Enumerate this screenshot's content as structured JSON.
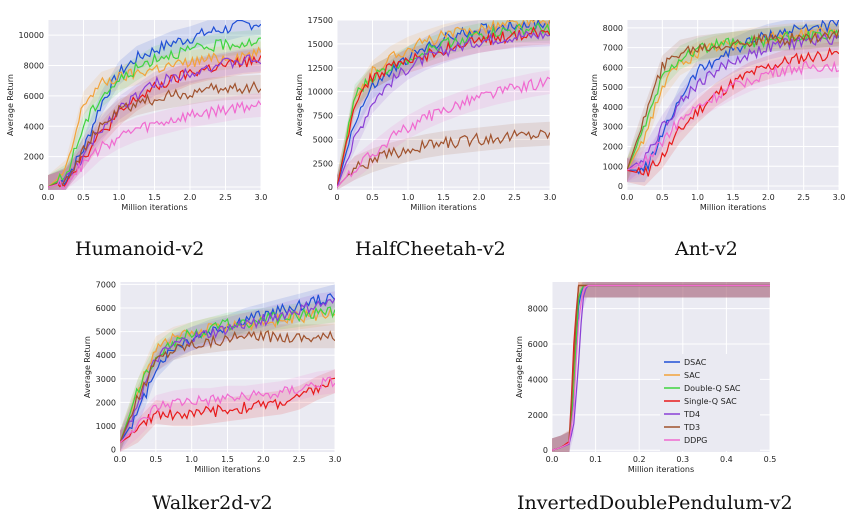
{
  "figure": {
    "legend": [
      "DSAC",
      "SAC",
      "Double-Q SAC",
      "Single-Q SAC",
      "TD4",
      "TD3",
      "DDPG"
    ],
    "colors": [
      "#1f4fd6",
      "#f2a33a",
      "#3fd43f",
      "#e81a1a",
      "#8a3fd6",
      "#a0522d",
      "#f06ad0"
    ]
  },
  "chart_data": [
    {
      "type": "line",
      "title": "Humanoid-v2",
      "xlabel": "Million iterations",
      "ylabel": "Average Return",
      "xlim": [
        0,
        3.0
      ],
      "ylim": [
        -200,
        11000
      ],
      "xticks": [
        "0.0",
        "0.5",
        "1.0",
        "1.5",
        "2.0",
        "2.5",
        "3.0"
      ],
      "yticks": [
        "0",
        "2000",
        "4000",
        "6000",
        "8000",
        "10000"
      ],
      "grid": true,
      "x": [
        0,
        0.25,
        0.5,
        0.75,
        1.0,
        1.25,
        1.5,
        1.75,
        2.0,
        2.25,
        2.5,
        2.75,
        3.0
      ],
      "series": [
        {
          "name": "DSAC",
          "values": [
            0,
            500,
            2500,
            5500,
            7500,
            8500,
            9000,
            9500,
            9800,
            10200,
            10400,
            10700,
            10800
          ]
        },
        {
          "name": "SAC",
          "values": [
            0,
            1000,
            5500,
            6800,
            7200,
            7500,
            7800,
            8000,
            8200,
            8400,
            8500,
            8700,
            8800
          ]
        },
        {
          "name": "Double-Q SAC",
          "values": [
            0,
            700,
            4000,
            6000,
            7000,
            7800,
            8500,
            8800,
            9000,
            9200,
            9400,
            9500,
            9600
          ]
        },
        {
          "name": "Single-Q SAC",
          "values": [
            0,
            400,
            2000,
            3500,
            4800,
            5800,
            6500,
            7000,
            7500,
            7800,
            8000,
            8200,
            8300
          ]
        },
        {
          "name": "TD4",
          "values": [
            0,
            400,
            2000,
            3800,
            5200,
            6000,
            6800,
            7200,
            7600,
            7900,
            8100,
            8300,
            8400
          ]
        },
        {
          "name": "TD3",
          "values": [
            0,
            500,
            2500,
            4000,
            5000,
            5500,
            5800,
            6000,
            6200,
            6400,
            6500,
            6550,
            6600
          ]
        },
        {
          "name": "DDPG",
          "values": [
            0,
            300,
            1500,
            2600,
            3300,
            3800,
            4100,
            4400,
            4700,
            4900,
            5100,
            5300,
            5400
          ]
        }
      ]
    },
    {
      "type": "line",
      "title": "HalfCheetah-v2",
      "xlabel": "Million iterations",
      "ylabel": "Average Return",
      "xlim": [
        0,
        3.0
      ],
      "ylim": [
        -300,
        17500
      ],
      "xticks": [
        "0",
        "0.5",
        "1.0",
        "1.5",
        "2.0",
        "2.5",
        "3.0"
      ],
      "yticks": [
        "0",
        "2500",
        "5000",
        "7500",
        "10000",
        "12500",
        "15000",
        "17500"
      ],
      "grid": true,
      "x": [
        0,
        0.25,
        0.5,
        0.75,
        1.0,
        1.25,
        1.5,
        1.75,
        2.0,
        2.25,
        2.5,
        2.75,
        3.0
      ],
      "series": [
        {
          "name": "DSAC",
          "values": [
            0,
            7000,
            10500,
            12000,
            13500,
            14500,
            15500,
            16000,
            16500,
            16800,
            17000,
            17100,
            17200
          ]
        },
        {
          "name": "SAC",
          "values": [
            0,
            9000,
            12000,
            13500,
            14500,
            15200,
            15800,
            16200,
            16600,
            16900,
            17100,
            17200,
            17300
          ]
        },
        {
          "name": "Double-Q SAC",
          "values": [
            0,
            9500,
            11500,
            12500,
            13500,
            14300,
            15000,
            15500,
            15900,
            16200,
            16400,
            16500,
            16600
          ]
        },
        {
          "name": "Single-Q SAC",
          "values": [
            0,
            9000,
            11500,
            12500,
            13200,
            13800,
            14400,
            14900,
            15300,
            15600,
            15900,
            16100,
            16200
          ]
        },
        {
          "name": "TD4",
          "values": [
            0,
            5000,
            9000,
            11000,
            12500,
            13500,
            14200,
            14800,
            15300,
            15600,
            15800,
            15900,
            16000
          ]
        },
        {
          "name": "TD3",
          "values": [
            0,
            2000,
            2800,
            3400,
            3900,
            4300,
            4600,
            4800,
            5000,
            5200,
            5400,
            5500,
            5600
          ]
        },
        {
          "name": "DDPG",
          "values": [
            0,
            2000,
            3500,
            5000,
            6300,
            7300,
            8100,
            8800,
            9400,
            9900,
            10300,
            10700,
            11000
          ]
        }
      ]
    },
    {
      "type": "line",
      "title": "Ant-v2",
      "xlabel": "Million iterations",
      "ylabel": "Average Return",
      "xlim": [
        0,
        3.0
      ],
      "ylim": [
        -200,
        8400
      ],
      "xticks": [
        "0.0",
        "0.5",
        "1.0",
        "1.5",
        "2.0",
        "2.5",
        "3.0"
      ],
      "yticks": [
        "0",
        "1000",
        "2000",
        "3000",
        "4000",
        "5000",
        "6000",
        "7000",
        "8000"
      ],
      "grid": true,
      "x": [
        0,
        0.25,
        0.5,
        0.75,
        1.0,
        1.25,
        1.5,
        1.75,
        2.0,
        2.25,
        2.5,
        2.75,
        3.0
      ],
      "series": [
        {
          "name": "DSAC",
          "values": [
            800,
            800,
            2500,
            4500,
            5800,
            6400,
            6900,
            7300,
            7600,
            7800,
            8000,
            8100,
            8200
          ]
        },
        {
          "name": "SAC",
          "values": [
            800,
            2500,
            5000,
            6200,
            6700,
            7000,
            7200,
            7400,
            7500,
            7600,
            7700,
            7800,
            7800
          ]
        },
        {
          "name": "Double-Q SAC",
          "values": [
            800,
            3000,
            5500,
            6500,
            6900,
            7100,
            7200,
            7300,
            7400,
            7500,
            7550,
            7600,
            7600
          ]
        },
        {
          "name": "Single-Q SAC",
          "values": [
            800,
            600,
            1500,
            2800,
            3800,
            4600,
            5200,
            5700,
            6000,
            6300,
            6500,
            6600,
            6700
          ]
        },
        {
          "name": "TD4",
          "values": [
            800,
            1500,
            3000,
            4200,
            5200,
            5800,
            6300,
            6700,
            7000,
            7200,
            7300,
            7400,
            7500
          ]
        },
        {
          "name": "TD3",
          "values": [
            800,
            3500,
            6000,
            6800,
            7000,
            7100,
            7200,
            7300,
            7400,
            7450,
            7500,
            7600,
            7700
          ]
        },
        {
          "name": "DDPG",
          "values": [
            800,
            1200,
            2300,
            3300,
            4000,
            4500,
            5000,
            5400,
            5700,
            5900,
            6000,
            6050,
            6100
          ]
        }
      ]
    },
    {
      "type": "line",
      "title": "Walker2d-v2",
      "xlabel": "Million iterations",
      "ylabel": "Average Return",
      "xlim": [
        0,
        3.0
      ],
      "ylim": [
        -100,
        7100
      ],
      "xticks": [
        "0.0",
        "0.5",
        "1.0",
        "1.5",
        "2.0",
        "2.5",
        "3.0"
      ],
      "yticks": [
        "0",
        "1000",
        "2000",
        "3000",
        "4000",
        "5000",
        "6000",
        "7000"
      ],
      "grid": true,
      "x": [
        0,
        0.25,
        0.5,
        0.75,
        1.0,
        1.25,
        1.5,
        1.75,
        2.0,
        2.25,
        2.5,
        2.75,
        3.0
      ],
      "series": [
        {
          "name": "DSAC",
          "values": [
            300,
            1500,
            3500,
            4300,
            4700,
            5000,
            5200,
            5500,
            5700,
            5900,
            6100,
            6300,
            6500
          ]
        },
        {
          "name": "SAC",
          "values": [
            300,
            2500,
            4300,
            4700,
            4900,
            5100,
            5200,
            5300,
            5400,
            5500,
            5600,
            5700,
            5800
          ]
        },
        {
          "name": "Double-Q SAC",
          "values": [
            300,
            2500,
            4000,
            4600,
            4900,
            5100,
            5300,
            5400,
            5500,
            5600,
            5700,
            5800,
            5900
          ]
        },
        {
          "name": "Single-Q SAC",
          "values": [
            300,
            800,
            1600,
            1500,
            1500,
            1600,
            1700,
            1800,
            1900,
            2000,
            2200,
            2600,
            2900
          ]
        },
        {
          "name": "TD4",
          "values": [
            300,
            2000,
            3800,
            4400,
            4700,
            4900,
            5100,
            5300,
            5500,
            5700,
            5900,
            6100,
            6200
          ]
        },
        {
          "name": "TD3",
          "values": [
            300,
            2200,
            3800,
            4300,
            4500,
            4600,
            4700,
            4750,
            4800,
            4800,
            4800,
            4800,
            4800
          ]
        },
        {
          "name": "DDPG",
          "values": [
            300,
            1000,
            1800,
            2000,
            2100,
            2100,
            2200,
            2200,
            2300,
            2400,
            2600,
            2800,
            2900
          ]
        }
      ]
    },
    {
      "type": "line",
      "title": "InvertedDoublePendulum-v2",
      "xlabel": "Million iterations",
      "ylabel": "Average Return",
      "xlim": [
        0,
        0.5
      ],
      "ylim": [
        -100,
        9500
      ],
      "xticks": [
        "0.0",
        "0.1",
        "0.2",
        "0.3",
        "0.4",
        "0.5"
      ],
      "yticks": [
        "0",
        "2000",
        "4000",
        "6000",
        "8000"
      ],
      "grid": true,
      "legend_position": "center-right",
      "x": [
        0,
        0.02,
        0.04,
        0.05,
        0.06,
        0.07,
        0.08,
        0.1,
        0.2,
        0.3,
        0.4,
        0.5
      ],
      "series": [
        {
          "name": "DSAC",
          "values": [
            0,
            150,
            400,
            3000,
            8000,
            9300,
            9300,
            9300,
            9300,
            9300,
            9300,
            9300
          ]
        },
        {
          "name": "SAC",
          "values": [
            0,
            150,
            400,
            4500,
            9300,
            9300,
            9300,
            9300,
            9300,
            9300,
            9300,
            9300
          ]
        },
        {
          "name": "Double-Q SAC",
          "values": [
            0,
            150,
            400,
            3500,
            8500,
            9300,
            9300,
            9300,
            9300,
            9300,
            9300,
            9300
          ]
        },
        {
          "name": "Single-Q SAC",
          "values": [
            0,
            150,
            500,
            6000,
            9300,
            9300,
            9300,
            9300,
            9300,
            9300,
            9300,
            9300
          ]
        },
        {
          "name": "TD4",
          "values": [
            0,
            150,
            350,
            1500,
            4500,
            8500,
            9300,
            9300,
            9300,
            9300,
            9300,
            9300
          ]
        },
        {
          "name": "TD3",
          "values": [
            0,
            150,
            400,
            5000,
            9300,
            9300,
            9300,
            9300,
            9300,
            9300,
            9300,
            9300
          ]
        },
        {
          "name": "DDPG",
          "values": [
            0,
            150,
            400,
            2500,
            7000,
            9000,
            9300,
            9300,
            9300,
            9300,
            9300,
            9300
          ]
        }
      ]
    }
  ]
}
